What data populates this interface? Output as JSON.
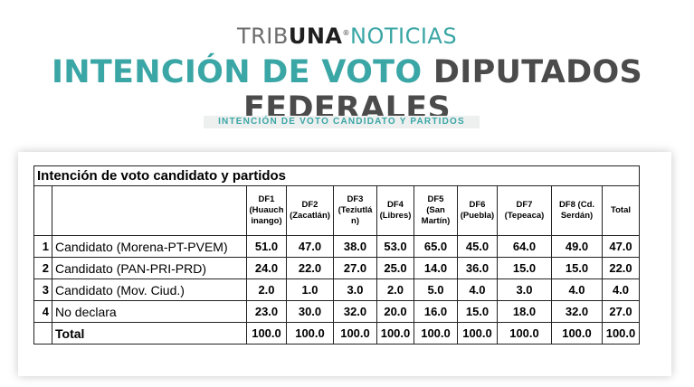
{
  "brand": {
    "part1": "TRIB",
    "part2": "UNA",
    "reg": "®",
    "part3": "NOTICIAS"
  },
  "headline": {
    "part1": "INTENCIÓN DE VOTO",
    "part2": "DIPUTADOS FEDERALES"
  },
  "subtitle": "INTENCIÓN DE VOTO CANDIDATO Y PARTIDOS",
  "table": {
    "caption": "Intención de voto candidato y partidos",
    "columns": [
      [
        "DF1",
        "(Huauch",
        "inango)"
      ],
      [
        "DF2",
        "(Zacatlán)"
      ],
      [
        "DF3",
        "(Teziutlá",
        "n)"
      ],
      [
        "DF4",
        "(Libres)"
      ],
      [
        "DF5",
        "(San",
        "Martín)"
      ],
      [
        "DF6",
        "(Puebla)"
      ],
      [
        "DF7",
        "(Tepeaca)"
      ],
      [
        "DF8 (Cd.",
        "Serdán)"
      ],
      [
        "Total"
      ]
    ],
    "rows": [
      {
        "index": "1",
        "label": "Candidato (Morena-PT-PVEM)",
        "values": [
          "51.0",
          "47.0",
          "38.0",
          "53.0",
          "65.0",
          "45.0",
          "64.0",
          "49.0",
          "47.0"
        ]
      },
      {
        "index": "2",
        "label": "Candidato (PAN-PRI-PRD)",
        "values": [
          "24.0",
          "22.0",
          "27.0",
          "25.0",
          "14.0",
          "36.0",
          "15.0",
          "15.0",
          "22.0"
        ]
      },
      {
        "index": "3",
        "label": "Candidato (Mov. Ciud.)",
        "values": [
          "2.0",
          "1.0",
          "3.0",
          "2.0",
          "5.0",
          "4.0",
          "3.0",
          "4.0",
          "4.0"
        ]
      },
      {
        "index": "4",
        "label": "No declara",
        "values": [
          "23.0",
          "30.0",
          "32.0",
          "20.0",
          "16.0",
          "15.0",
          "18.0",
          "32.0",
          "27.0"
        ]
      }
    ],
    "total": {
      "index": "",
      "label": "Total",
      "values": [
        "100.0",
        "100.0",
        "100.0",
        "100.0",
        "100.0",
        "100.0",
        "100.0",
        "100.0",
        "100.0"
      ]
    }
  }
}
